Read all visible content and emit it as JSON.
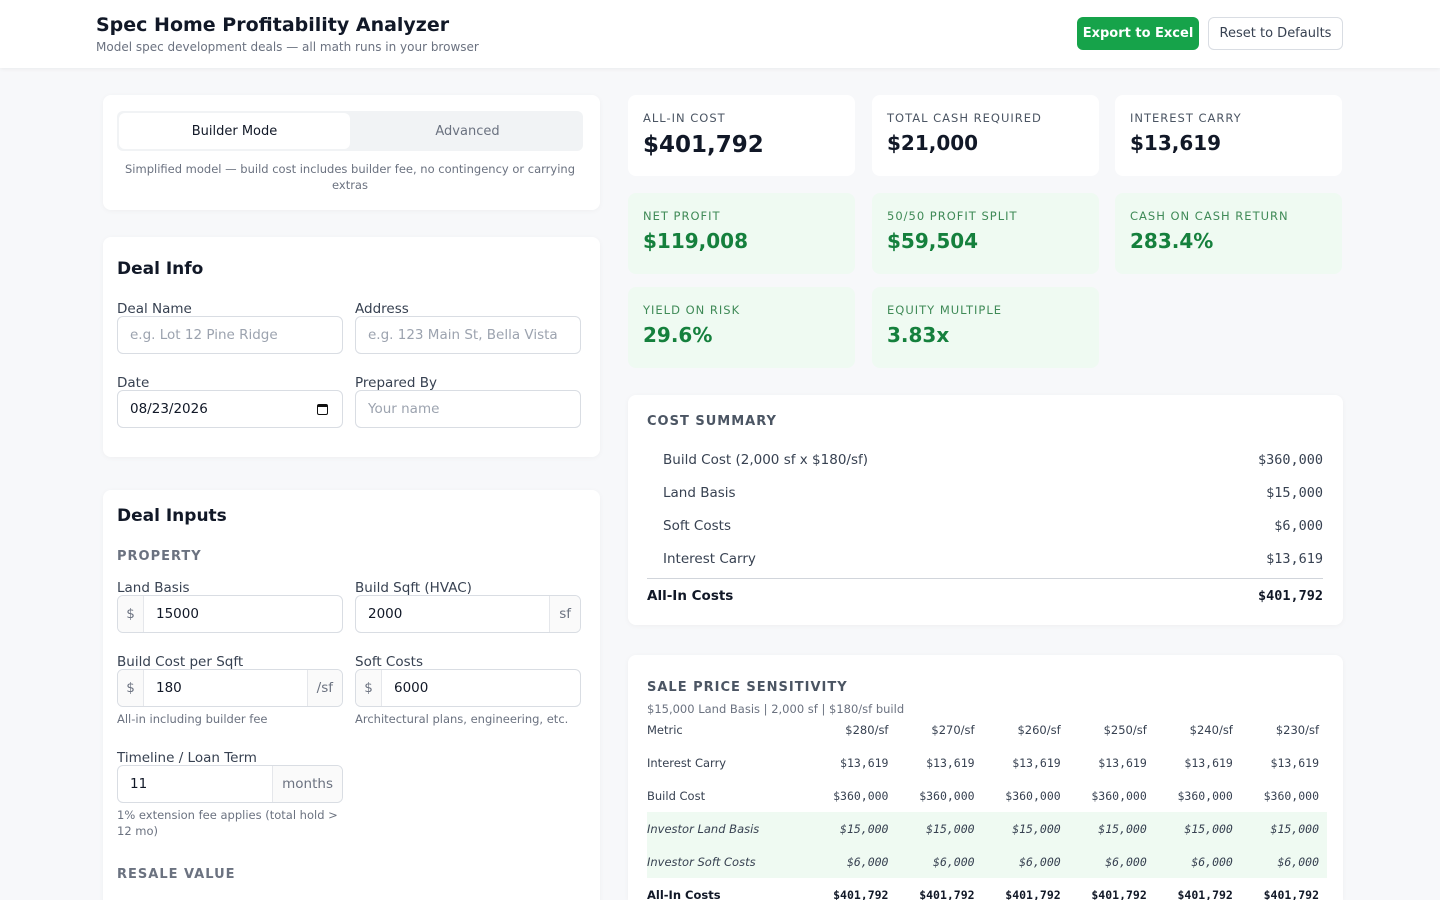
{
  "header": {
    "title": "Spec Home Profitability Analyzer",
    "subtitle": "Model spec development deals — all math runs in your browser",
    "buttons": [
      "Export to Excel",
      "Reset to Defaults"
    ]
  },
  "mode": {
    "tabs": [
      "Builder Mode",
      "Advanced"
    ],
    "note": "Simplified model — build cost includes builder fee, no contingency or carrying extras"
  },
  "deal_info": {
    "title": "Deal Info",
    "fields": [
      {
        "label": "Deal Name",
        "placeholder": "e.g. Lot 12 Pine Ridge"
      },
      {
        "label": "Address",
        "placeholder": "e.g. 123 Main St, Bella Vista"
      },
      {
        "label": "Date",
        "value": "08/23/2026"
      },
      {
        "label": "Prepared By",
        "placeholder": "Your name"
      }
    ]
  },
  "deal_inputs": {
    "title": "Deal Inputs",
    "section": "PROPERTY",
    "fields": [
      {
        "label": "Land Basis",
        "prefix": "$",
        "value": "15000"
      },
      {
        "label": "Build Sqft (HVAC)",
        "value": "2000",
        "suffix": "sf"
      },
      {
        "label": "Build Cost per Sqft",
        "prefix": "$",
        "value": "180",
        "suffix": "/sf",
        "hint": "All-in including builder fee"
      },
      {
        "label": "Soft Costs",
        "prefix": "$",
        "value": "6000",
        "hint": "Architectural plans, engineering, etc."
      },
      {
        "label": "Timeline / Loan Term",
        "value": "11",
        "suffix": "months",
        "hint": "1% extension fee applies (total hold > 12 mo)"
      }
    ],
    "next_section": "RESALE VALUE"
  },
  "metrics": [
    {
      "label": "ALL-IN COST",
      "value": "$401,792"
    },
    {
      "label": "TOTAL CASH REQUIRED",
      "value": "$21,000"
    },
    {
      "label": "INTEREST CARRY",
      "value": "$13,619"
    },
    {
      "label": "NET PROFIT",
      "value": "$119,008",
      "positive": true
    },
    {
      "label": "50/50 PROFIT SPLIT",
      "value": "$59,504",
      "positive": true
    },
    {
      "label": "CASH ON CASH RETURN",
      "value": "283.4%",
      "positive": true
    },
    {
      "label": "YIELD ON RISK",
      "value": "29.6%",
      "positive": true
    },
    {
      "label": "EQUITY MULTIPLE",
      "value": "3.83x",
      "positive": true
    }
  ],
  "cost_summary": {
    "title": "COST SUMMARY",
    "rows": [
      [
        "Build Cost (2,000 sf x $180/sf)",
        "$360,000"
      ],
      [
        "Land Basis",
        "$15,000"
      ],
      [
        "Soft Costs",
        "$6,000"
      ],
      [
        "Interest Carry",
        "$13,619"
      ]
    ],
    "total": [
      "All-In Costs",
      "$401,792"
    ]
  },
  "sensitivity": {
    "title": "SALE PRICE SENSITIVITY",
    "subtitle": "$15,000 Land Basis | 2,000 sf | $180/sf build",
    "header": [
      "Metric",
      "$280/sf",
      "$270/sf",
      "$260/sf",
      "$250/sf",
      "$240/sf",
      "$230/sf"
    ],
    "rows": [
      {
        "cells": [
          "Interest Carry",
          "$13,619",
          "$13,619",
          "$13,619",
          "$13,619",
          "$13,619",
          "$13,619"
        ]
      },
      {
        "cells": [
          "Build Cost",
          "$360,000",
          "$360,000",
          "$360,000",
          "$360,000",
          "$360,000",
          "$360,000"
        ]
      },
      {
        "cells": [
          "Investor Land Basis",
          "$15,000",
          "$15,000",
          "$15,000",
          "$15,000",
          "$15,000",
          "$15,000"
        ],
        "investor": true
      },
      {
        "cells": [
          "Investor Soft Costs",
          "$6,000",
          "$6,000",
          "$6,000",
          "$6,000",
          "$6,000",
          "$6,000"
        ],
        "investor": true
      },
      {
        "cells": [
          "All-In Costs",
          "$401,792",
          "$401,792",
          "$401,792",
          "$401,792",
          "$401,792",
          "$401,792"
        ],
        "total": true
      }
    ]
  }
}
